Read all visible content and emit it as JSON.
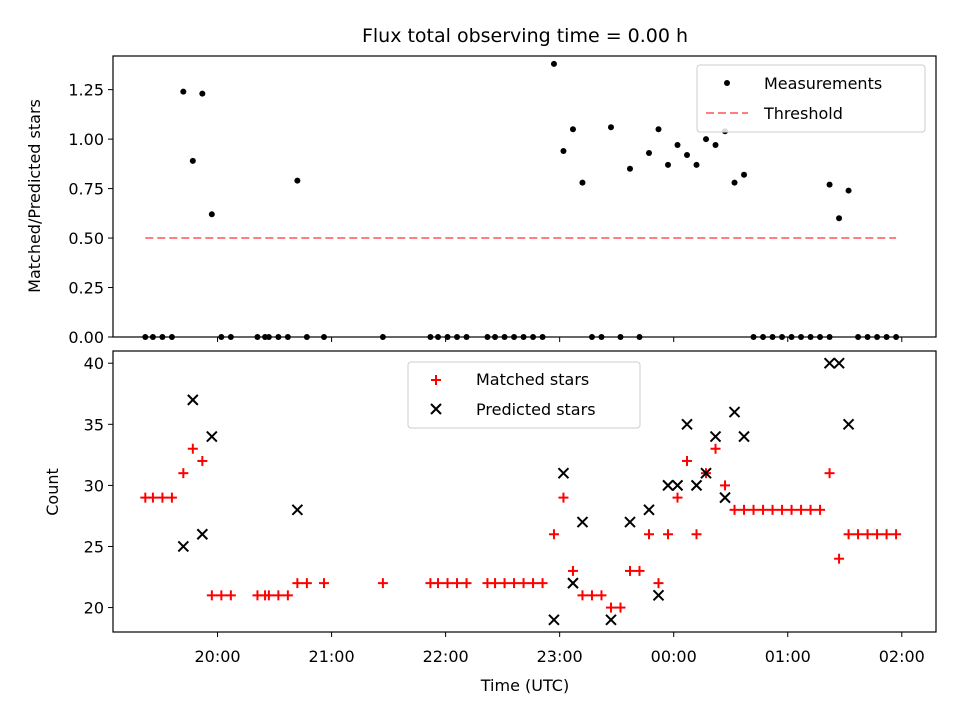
{
  "chart_data": [
    {
      "type": "scatter",
      "title": "Flux total observing time = 0.00 h",
      "ylabel": "Matched/Predicted stars",
      "xlabel": "",
      "ylim": [
        0,
        1.42
      ],
      "xlim": [
        "19:05",
        "02:18"
      ],
      "yticks": [
        0.0,
        0.25,
        0.5,
        0.75,
        1.0,
        1.25
      ],
      "ytick_labels": [
        "0.00",
        "0.25",
        "0.50",
        "0.75",
        "1.00",
        "1.25"
      ],
      "legend_position": "top-right",
      "series": [
        {
          "name": "Measurements",
          "marker": "dot",
          "color": "#000000",
          "points": [
            [
              "19:22",
              0
            ],
            [
              "19:26",
              0
            ],
            [
              "19:31",
              0
            ],
            [
              "19:36",
              0
            ],
            [
              "19:42",
              1.24
            ],
            [
              "19:47",
              0.89
            ],
            [
              "19:52",
              1.23
            ],
            [
              "19:57",
              0.62
            ],
            [
              "20:02",
              0
            ],
            [
              "20:07",
              0
            ],
            [
              "20:21",
              0
            ],
            [
              "20:25",
              0
            ],
            [
              "20:27",
              0
            ],
            [
              "20:32",
              0
            ],
            [
              "20:37",
              0
            ],
            [
              "20:42",
              0.79
            ],
            [
              "20:47",
              0
            ],
            [
              "20:56",
              0
            ],
            [
              "21:27",
              0
            ],
            [
              "21:52",
              0
            ],
            [
              "21:56",
              0
            ],
            [
              "22:01",
              0
            ],
            [
              "22:06",
              0
            ],
            [
              "22:11",
              0
            ],
            [
              "22:22",
              0
            ],
            [
              "22:26",
              0
            ],
            [
              "22:31",
              0
            ],
            [
              "22:36",
              0
            ],
            [
              "22:41",
              0
            ],
            [
              "22:46",
              0
            ],
            [
              "22:51",
              0
            ],
            [
              "22:57",
              1.38
            ],
            [
              "23:02",
              0.94
            ],
            [
              "23:07",
              1.05
            ],
            [
              "23:12",
              0.78
            ],
            [
              "23:17",
              0
            ],
            [
              "23:22",
              0
            ],
            [
              "23:27",
              1.06
            ],
            [
              "23:32",
              0
            ],
            [
              "23:37",
              0.85
            ],
            [
              "23:42",
              0
            ],
            [
              "23:47",
              0.93
            ],
            [
              "23:52",
              1.05
            ],
            [
              "23:57",
              0.87
            ],
            [
              "00:02",
              0.97
            ],
            [
              "00:07",
              0.92
            ],
            [
              "00:12",
              0.87
            ],
            [
              "00:17",
              1.0
            ],
            [
              "00:22",
              0.97
            ],
            [
              "00:27",
              1.04
            ],
            [
              "00:32",
              0.78
            ],
            [
              "00:37",
              0.82
            ],
            [
              "00:42",
              0
            ],
            [
              "00:47",
              0
            ],
            [
              "00:52",
              0
            ],
            [
              "00:57",
              0
            ],
            [
              "01:02",
              0
            ],
            [
              "01:07",
              0
            ],
            [
              "01:12",
              0
            ],
            [
              "01:17",
              0
            ],
            [
              "01:22",
              0
            ],
            [
              "01:22",
              0.77
            ],
            [
              "01:27",
              0.6
            ],
            [
              "01:32",
              0.74
            ],
            [
              "01:37",
              0
            ],
            [
              "01:42",
              0
            ],
            [
              "01:47",
              0
            ],
            [
              "01:52",
              0
            ],
            [
              "01:57",
              0
            ]
          ]
        },
        {
          "name": "Threshold",
          "marker": "dashed-line",
          "color": "#ff7f7f",
          "points": [
            [
              "19:22",
              0.5
            ],
            [
              "01:57",
              0.5
            ]
          ]
        }
      ]
    },
    {
      "type": "scatter",
      "title": "",
      "ylabel": "Count",
      "xlabel": "Time (UTC)",
      "ylim": [
        18,
        41
      ],
      "xlim": [
        "19:05",
        "02:18"
      ],
      "yticks": [
        20,
        25,
        30,
        35,
        40
      ],
      "xticks": [
        "20:00",
        "21:00",
        "22:00",
        "23:00",
        "00:00",
        "01:00",
        "02:00"
      ],
      "legend_position": "top-center",
      "series": [
        {
          "name": "Matched stars",
          "marker": "plus",
          "color": "#ff0000",
          "points": [
            [
              "19:22",
              29
            ],
            [
              "19:26",
              29
            ],
            [
              "19:31",
              29
            ],
            [
              "19:36",
              29
            ],
            [
              "19:42",
              31
            ],
            [
              "19:47",
              33
            ],
            [
              "19:52",
              32
            ],
            [
              "19:57",
              21
            ],
            [
              "20:02",
              21
            ],
            [
              "20:07",
              21
            ],
            [
              "20:21",
              21
            ],
            [
              "20:25",
              21
            ],
            [
              "20:27",
              21
            ],
            [
              "20:32",
              21
            ],
            [
              "20:37",
              21
            ],
            [
              "20:42",
              22
            ],
            [
              "20:47",
              22
            ],
            [
              "20:56",
              22
            ],
            [
              "21:27",
              22
            ],
            [
              "21:52",
              22
            ],
            [
              "21:56",
              22
            ],
            [
              "22:01",
              22
            ],
            [
              "22:06",
              22
            ],
            [
              "22:11",
              22
            ],
            [
              "22:22",
              22
            ],
            [
              "22:26",
              22
            ],
            [
              "22:31",
              22
            ],
            [
              "22:36",
              22
            ],
            [
              "22:41",
              22
            ],
            [
              "22:46",
              22
            ],
            [
              "22:51",
              22
            ],
            [
              "22:57",
              26
            ],
            [
              "23:02",
              29
            ],
            [
              "23:07",
              23
            ],
            [
              "23:12",
              21
            ],
            [
              "23:17",
              21
            ],
            [
              "23:22",
              21
            ],
            [
              "23:27",
              20
            ],
            [
              "23:32",
              20
            ],
            [
              "23:37",
              23
            ],
            [
              "23:42",
              23
            ],
            [
              "23:47",
              26
            ],
            [
              "23:52",
              22
            ],
            [
              "23:57",
              26
            ],
            [
              "00:02",
              29
            ],
            [
              "00:07",
              32
            ],
            [
              "00:12",
              26
            ],
            [
              "00:17",
              31
            ],
            [
              "00:22",
              33
            ],
            [
              "00:27",
              30
            ],
            [
              "00:32",
              28
            ],
            [
              "00:37",
              28
            ],
            [
              "00:42",
              28
            ],
            [
              "00:47",
              28
            ],
            [
              "00:52",
              28
            ],
            [
              "00:57",
              28
            ],
            [
              "01:02",
              28
            ],
            [
              "01:07",
              28
            ],
            [
              "01:12",
              28
            ],
            [
              "01:17",
              28
            ],
            [
              "01:22",
              31
            ],
            [
              "01:27",
              24
            ],
            [
              "01:32",
              26
            ],
            [
              "01:37",
              26
            ],
            [
              "01:42",
              26
            ],
            [
              "01:47",
              26
            ],
            [
              "01:52",
              26
            ],
            [
              "01:57",
              26
            ]
          ]
        },
        {
          "name": "Predicted stars",
          "marker": "x",
          "color": "#000000",
          "points": [
            [
              "19:42",
              25
            ],
            [
              "19:47",
              37
            ],
            [
              "19:52",
              26
            ],
            [
              "19:57",
              34
            ],
            [
              "20:42",
              28
            ],
            [
              "22:57",
              19
            ],
            [
              "23:02",
              31
            ],
            [
              "23:07",
              22
            ],
            [
              "23:12",
              27
            ],
            [
              "23:27",
              19
            ],
            [
              "23:37",
              27
            ],
            [
              "23:47",
              28
            ],
            [
              "23:52",
              21
            ],
            [
              "23:57",
              30
            ],
            [
              "00:02",
              30
            ],
            [
              "00:07",
              35
            ],
            [
              "00:12",
              30
            ],
            [
              "00:17",
              31
            ],
            [
              "00:22",
              34
            ],
            [
              "00:27",
              29
            ],
            [
              "00:32",
              36
            ],
            [
              "00:37",
              34
            ],
            [
              "01:22",
              40
            ],
            [
              "01:27",
              40
            ],
            [
              "01:32",
              35
            ]
          ]
        }
      ]
    }
  ]
}
